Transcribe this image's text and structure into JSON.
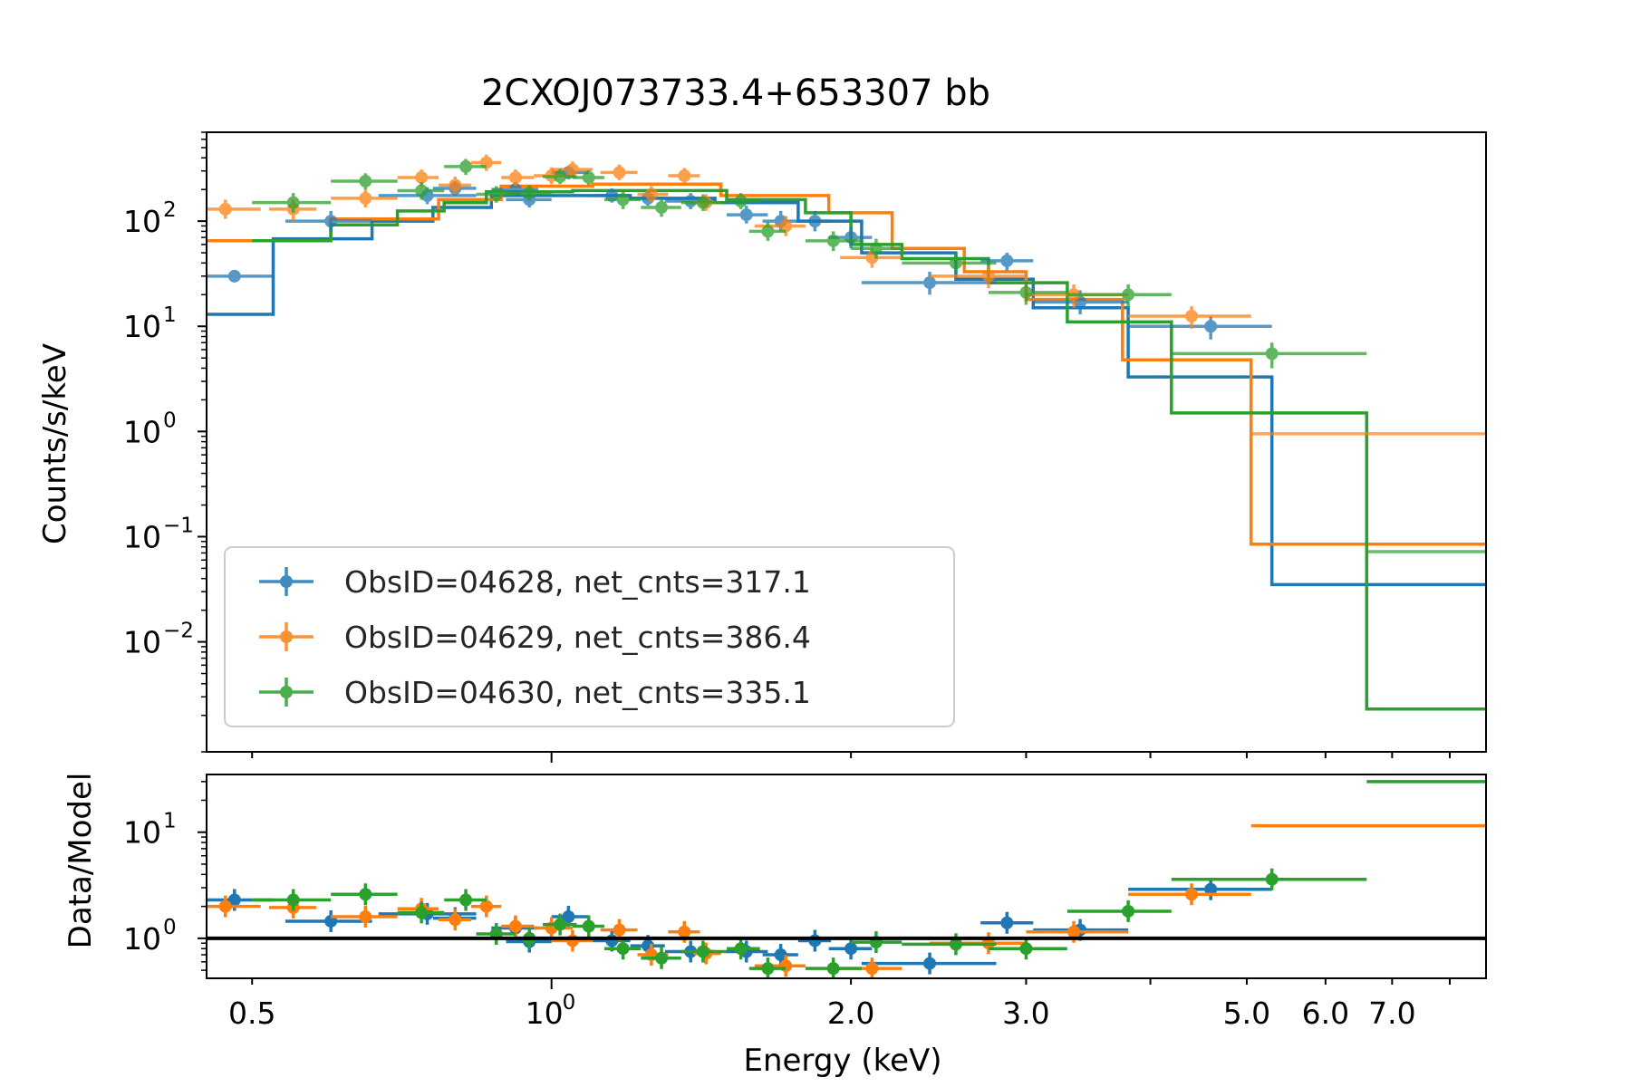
{
  "chart_data": {
    "type": "scatter",
    "title": "2CXOJ073733.4+653307 bb",
    "xlabel": "Energy (keV)",
    "x_scale": "log",
    "xlim": [
      0.45,
      8.7
    ],
    "x_ticks": [
      {
        "value": 0.5,
        "label": "0.5",
        "exp": ""
      },
      {
        "value": 1.0,
        "label": "10",
        "exp": "0"
      },
      {
        "value": 2.0,
        "label": "2.0",
        "exp": ""
      },
      {
        "value": 3.0,
        "label": "3.0",
        "exp": ""
      },
      {
        "value": 5.0,
        "label": "5.0",
        "exp": ""
      },
      {
        "value": 6.0,
        "label": "6.0",
        "exp": ""
      },
      {
        "value": 7.0,
        "label": "7.0",
        "exp": ""
      }
    ],
    "top_panel": {
      "ylabel": "Counts/s/keV",
      "y_scale": "log",
      "ylim": [
        0.0009,
        700
      ],
      "y_ticks": [
        {
          "value": 100,
          "base": "10",
          "exp": "2"
        },
        {
          "value": 10,
          "base": "10",
          "exp": "1"
        },
        {
          "value": 1,
          "base": "10",
          "exp": "0"
        },
        {
          "value": 0.1,
          "base": "10",
          "exp": "−1"
        },
        {
          "value": 0.01,
          "base": "10",
          "exp": "−2"
        }
      ]
    },
    "bottom_panel": {
      "ylabel": "Data/Model",
      "y_scale": "log",
      "ylim": [
        0.42,
        35
      ],
      "reference_line": 1.0,
      "y_ticks": [
        {
          "value": 10,
          "base": "10",
          "exp": "1"
        },
        {
          "value": 1,
          "base": "10",
          "exp": "0"
        }
      ]
    },
    "legend": {
      "position": "lower-left",
      "entries": [
        "ObsID=04628, net_cnts=317.1",
        "ObsID=04629, net_cnts=386.4",
        "ObsID=04630, net_cnts=335.1"
      ]
    },
    "series": [
      {
        "name": "ObsID=04628, net_cnts=317.1",
        "color": "#1f77b4",
        "data": [
          {
            "x": 0.48,
            "xlo": 0.4,
            "xhi": 0.525,
            "y": 30,
            "ylo": 30,
            "yhi": 30,
            "ratio": 2.3
          },
          {
            "x": 0.6,
            "xlo": 0.54,
            "xhi": 0.66,
            "y": 100,
            "ylo": 80,
            "yhi": 125,
            "ratio": 1.45
          },
          {
            "x": 0.75,
            "xlo": 0.67,
            "xhi": 0.84,
            "y": 175,
            "ylo": 145,
            "yhi": 210,
            "ratio": 1.7
          },
          {
            "x": 0.8,
            "xlo": 0.76,
            "xhi": 0.84,
            "y": 205,
            "ylo": 175,
            "yhi": 240,
            "ratio": 1.55
          },
          {
            "x": 0.92,
            "xlo": 0.87,
            "xhi": 0.97,
            "y": 200,
            "ylo": 170,
            "yhi": 235,
            "ratio": 1.25
          },
          {
            "x": 0.95,
            "xlo": 0.9,
            "xhi": 1.0,
            "y": 160,
            "ylo": 135,
            "yhi": 190,
            "ratio": 0.93
          },
          {
            "x": 1.04,
            "xlo": 1.0,
            "xhi": 1.09,
            "y": 290,
            "ylo": 250,
            "yhi": 330,
            "ratio": 1.6
          },
          {
            "x": 1.15,
            "xlo": 1.1,
            "xhi": 1.2,
            "y": 175,
            "ylo": 150,
            "yhi": 205,
            "ratio": 0.95
          },
          {
            "x": 1.25,
            "xlo": 1.2,
            "xhi": 1.3,
            "y": 165,
            "ylo": 140,
            "yhi": 195,
            "ratio": 0.85
          },
          {
            "x": 1.38,
            "xlo": 1.3,
            "xhi": 1.46,
            "y": 155,
            "ylo": 130,
            "yhi": 185,
            "ratio": 0.75
          },
          {
            "x": 1.57,
            "xlo": 1.5,
            "xhi": 1.65,
            "y": 115,
            "ylo": 95,
            "yhi": 140,
            "ratio": 0.75
          },
          {
            "x": 1.7,
            "xlo": 1.63,
            "xhi": 1.77,
            "y": 100,
            "ylo": 80,
            "yhi": 125,
            "ratio": 0.7
          },
          {
            "x": 1.84,
            "xlo": 1.77,
            "xhi": 1.91,
            "y": 100,
            "ylo": 80,
            "yhi": 125,
            "ratio": 0.95
          },
          {
            "x": 2.0,
            "xlo": 1.9,
            "xhi": 2.1,
            "y": 70,
            "ylo": 55,
            "yhi": 88,
            "ratio": 0.8
          },
          {
            "x": 2.4,
            "xlo": 2.05,
            "xhi": 2.8,
            "y": 26,
            "ylo": 20,
            "yhi": 33,
            "ratio": 0.58
          },
          {
            "x": 2.87,
            "xlo": 2.7,
            "xhi": 3.05,
            "y": 42,
            "ylo": 34,
            "yhi": 50,
            "ratio": 1.4
          },
          {
            "x": 3.4,
            "xlo": 3.05,
            "xhi": 3.8,
            "y": 17,
            "ylo": 13,
            "yhi": 22,
            "ratio": 1.2
          },
          {
            "x": 4.6,
            "xlo": 3.8,
            "xhi": 5.3,
            "y": 10,
            "ylo": 7.5,
            "yhi": 12.5,
            "ratio": 2.9
          }
        ],
        "model_steps": [
          {
            "x0": 0.45,
            "x1": 0.525,
            "y": 13
          },
          {
            "x0": 0.525,
            "x1": 0.66,
            "y": 68
          },
          {
            "x0": 0.66,
            "x1": 0.76,
            "y": 100
          },
          {
            "x0": 0.76,
            "x1": 0.87,
            "y": 135
          },
          {
            "x0": 0.87,
            "x1": 1.2,
            "y": 175
          },
          {
            "x0": 1.2,
            "x1": 1.46,
            "y": 165
          },
          {
            "x0": 1.46,
            "x1": 1.77,
            "y": 150
          },
          {
            "x0": 1.77,
            "x1": 2.05,
            "y": 100
          },
          {
            "x0": 2.05,
            "x1": 2.55,
            "y": 50
          },
          {
            "x0": 2.55,
            "x1": 3.05,
            "y": 28
          },
          {
            "x0": 3.05,
            "x1": 3.8,
            "y": 15
          },
          {
            "x0": 3.8,
            "x1": 5.3,
            "y": 3.3
          },
          {
            "x0": 5.3,
            "x1": 8.7,
            "y": 0.035
          }
        ]
      },
      {
        "name": "ObsID=04629, net_cnts=386.4",
        "color": "#ff7f0e",
        "data": [
          {
            "x": 0.47,
            "xlo": 0.44,
            "xhi": 0.51,
            "y": 130,
            "ylo": 105,
            "yhi": 160,
            "ratio": 2.0
          },
          {
            "x": 0.55,
            "xlo": 0.52,
            "xhi": 0.58,
            "y": 130,
            "ylo": 100,
            "yhi": 160,
            "ratio": 1.95
          },
          {
            "x": 0.65,
            "xlo": 0.6,
            "xhi": 0.7,
            "y": 165,
            "ylo": 135,
            "yhi": 200,
            "ratio": 1.6
          },
          {
            "x": 0.74,
            "xlo": 0.7,
            "xhi": 0.77,
            "y": 260,
            "ylo": 215,
            "yhi": 310,
            "ratio": 1.9
          },
          {
            "x": 0.8,
            "xlo": 0.77,
            "xhi": 0.83,
            "y": 220,
            "ylo": 180,
            "yhi": 265,
            "ratio": 1.5
          },
          {
            "x": 0.86,
            "xlo": 0.83,
            "xhi": 0.89,
            "y": 360,
            "ylo": 300,
            "yhi": 430,
            "ratio": 2.0
          },
          {
            "x": 0.92,
            "xlo": 0.89,
            "xhi": 0.96,
            "y": 260,
            "ylo": 215,
            "yhi": 310,
            "ratio": 1.3
          },
          {
            "x": 1.0,
            "xlo": 0.96,
            "xhi": 1.05,
            "y": 270,
            "ylo": 225,
            "yhi": 325,
            "ratio": 1.25
          },
          {
            "x": 1.05,
            "xlo": 1.0,
            "xhi": 1.1,
            "y": 310,
            "ylo": 260,
            "yhi": 370,
            "ratio": 0.95
          },
          {
            "x": 1.17,
            "xlo": 1.12,
            "xhi": 1.22,
            "y": 290,
            "ylo": 245,
            "yhi": 345,
            "ratio": 1.2
          },
          {
            "x": 1.26,
            "xlo": 1.22,
            "xhi": 1.31,
            "y": 180,
            "ylo": 150,
            "yhi": 215,
            "ratio": 0.7
          },
          {
            "x": 1.36,
            "xlo": 1.31,
            "xhi": 1.41,
            "y": 270,
            "ylo": 225,
            "yhi": 320,
            "ratio": 1.15
          },
          {
            "x": 1.43,
            "xlo": 1.39,
            "xhi": 1.48,
            "y": 150,
            "ylo": 125,
            "yhi": 180,
            "ratio": 0.72
          },
          {
            "x": 1.72,
            "xlo": 1.6,
            "xhi": 1.8,
            "y": 90,
            "ylo": 72,
            "yhi": 112,
            "ratio": 0.55
          },
          {
            "x": 2.1,
            "xlo": 1.95,
            "xhi": 2.25,
            "y": 45,
            "ylo": 36,
            "yhi": 56,
            "ratio": 0.52
          },
          {
            "x": 2.75,
            "xlo": 2.4,
            "xhi": 3.0,
            "y": 30,
            "ylo": 23,
            "yhi": 38,
            "ratio": 0.9
          },
          {
            "x": 3.35,
            "xlo": 3.0,
            "xhi": 3.8,
            "y": 20,
            "ylo": 15,
            "yhi": 25,
            "ratio": 1.15
          },
          {
            "x": 4.4,
            "xlo": 3.8,
            "xhi": 5.05,
            "y": 12.5,
            "ylo": 9.5,
            "yhi": 15.5,
            "ratio": 2.6
          }
        ],
        "model_steps": [
          {
            "x0": 0.45,
            "x1": 0.52,
            "y": 65
          },
          {
            "x0": 0.52,
            "x1": 0.6,
            "y": 65
          },
          {
            "x0": 0.6,
            "x1": 0.77,
            "y": 105
          },
          {
            "x0": 0.77,
            "x1": 0.89,
            "y": 160
          },
          {
            "x0": 0.89,
            "x1": 1.1,
            "y": 215
          },
          {
            "x0": 1.1,
            "x1": 1.48,
            "y": 225
          },
          {
            "x0": 1.48,
            "x1": 1.9,
            "y": 175
          },
          {
            "x0": 1.9,
            "x1": 2.2,
            "y": 120
          },
          {
            "x0": 2.2,
            "x1": 2.6,
            "y": 55
          },
          {
            "x0": 2.6,
            "x1": 3.0,
            "y": 33
          },
          {
            "x0": 3.0,
            "x1": 3.75,
            "y": 18
          },
          {
            "x0": 3.75,
            "x1": 5.05,
            "y": 4.8
          },
          {
            "x0": 5.05,
            "x1": 8.7,
            "y": 0.085
          }
        ]
      },
      {
        "name": "ObsID=04630, net_cnts=335.1",
        "color": "#2ca02c",
        "data": [
          {
            "x": 0.55,
            "xlo": 0.5,
            "xhi": 0.6,
            "y": 150,
            "ylo": 120,
            "yhi": 185,
            "ratio": 2.3
          },
          {
            "x": 0.65,
            "xlo": 0.6,
            "xhi": 0.7,
            "y": 240,
            "ylo": 200,
            "yhi": 285,
            "ratio": 2.6
          },
          {
            "x": 0.74,
            "xlo": 0.7,
            "xhi": 0.78,
            "y": 195,
            "ylo": 160,
            "yhi": 235,
            "ratio": 1.75
          },
          {
            "x": 0.82,
            "xlo": 0.78,
            "xhi": 0.86,
            "y": 330,
            "ylo": 275,
            "yhi": 390,
            "ratio": 2.3
          },
          {
            "x": 0.88,
            "xlo": 0.84,
            "xhi": 0.92,
            "y": 180,
            "ylo": 150,
            "yhi": 215,
            "ratio": 1.1
          },
          {
            "x": 0.95,
            "xlo": 0.9,
            "xhi": 1.0,
            "y": 185,
            "ylo": 155,
            "yhi": 220,
            "ratio": 1.0
          },
          {
            "x": 1.02,
            "xlo": 0.98,
            "xhi": 1.06,
            "y": 265,
            "ylo": 225,
            "yhi": 315,
            "ratio": 1.35
          },
          {
            "x": 1.09,
            "xlo": 1.05,
            "xhi": 1.13,
            "y": 260,
            "ylo": 220,
            "yhi": 305,
            "ratio": 1.3
          },
          {
            "x": 1.18,
            "xlo": 1.13,
            "xhi": 1.23,
            "y": 160,
            "ylo": 130,
            "yhi": 195,
            "ratio": 0.8
          },
          {
            "x": 1.29,
            "xlo": 1.23,
            "xhi": 1.35,
            "y": 135,
            "ylo": 110,
            "yhi": 165,
            "ratio": 0.65
          },
          {
            "x": 1.42,
            "xlo": 1.35,
            "xhi": 1.5,
            "y": 150,
            "ylo": 125,
            "yhi": 180,
            "ratio": 0.75
          },
          {
            "x": 1.55,
            "xlo": 1.5,
            "xhi": 1.62,
            "y": 155,
            "ylo": 130,
            "yhi": 185,
            "ratio": 0.8
          },
          {
            "x": 1.65,
            "xlo": 1.58,
            "xhi": 1.72,
            "y": 80,
            "ylo": 65,
            "yhi": 98,
            "ratio": 0.52
          },
          {
            "x": 1.92,
            "xlo": 1.8,
            "xhi": 2.05,
            "y": 65,
            "ylo": 52,
            "yhi": 80,
            "ratio": 0.52
          },
          {
            "x": 2.12,
            "xlo": 2.0,
            "xhi": 2.25,
            "y": 55,
            "ylo": 44,
            "yhi": 68,
            "ratio": 0.92
          },
          {
            "x": 2.55,
            "xlo": 2.25,
            "xhi": 2.8,
            "y": 40,
            "ylo": 32,
            "yhi": 50,
            "ratio": 0.88
          },
          {
            "x": 3.0,
            "xlo": 2.75,
            "xhi": 3.3,
            "y": 21,
            "ylo": 16,
            "yhi": 26,
            "ratio": 0.8
          },
          {
            "x": 3.8,
            "xlo": 3.3,
            "xhi": 4.2,
            "y": 20,
            "ylo": 15,
            "yhi": 25,
            "ratio": 1.8
          },
          {
            "x": 5.3,
            "xlo": 4.2,
            "xhi": 6.6,
            "y": 5.5,
            "ylo": 4.0,
            "yhi": 7.0,
            "ratio": 3.6
          }
        ],
        "model_steps": [
          {
            "x0": 0.5,
            "x1": 0.6,
            "y": 65
          },
          {
            "x0": 0.6,
            "x1": 0.7,
            "y": 92
          },
          {
            "x0": 0.7,
            "x1": 0.78,
            "y": 125
          },
          {
            "x0": 0.78,
            "x1": 0.86,
            "y": 150
          },
          {
            "x0": 0.86,
            "x1": 1.05,
            "y": 190
          },
          {
            "x0": 1.05,
            "x1": 1.5,
            "y": 195
          },
          {
            "x0": 1.5,
            "x1": 1.8,
            "y": 160
          },
          {
            "x0": 1.8,
            "x1": 2.0,
            "y": 120
          },
          {
            "x0": 2.0,
            "x1": 2.25,
            "y": 60
          },
          {
            "x0": 2.25,
            "x1": 2.75,
            "y": 44
          },
          {
            "x0": 2.75,
            "x1": 3.3,
            "y": 26
          },
          {
            "x0": 3.3,
            "x1": 4.2,
            "y": 11
          },
          {
            "x0": 4.2,
            "x1": 6.6,
            "y": 1.5
          },
          {
            "x0": 6.6,
            "x1": 8.7,
            "y": 0.0023
          }
        ]
      }
    ],
    "extra_ratio_lines": [
      {
        "color": "#ff7f0e",
        "x0": 5.05,
        "x1": 8.7,
        "y": 11.5
      },
      {
        "color": "#2ca02c",
        "x0": 6.6,
        "x1": 8.7,
        "y": 30
      }
    ],
    "extra_top_lines": [
      {
        "color": "#ff7f0e",
        "x0": 5.05,
        "x1": 8.7,
        "y": 0.95
      },
      {
        "color": "#2ca02c",
        "x0": 6.6,
        "x1": 8.7,
        "y": 0.072
      }
    ]
  }
}
